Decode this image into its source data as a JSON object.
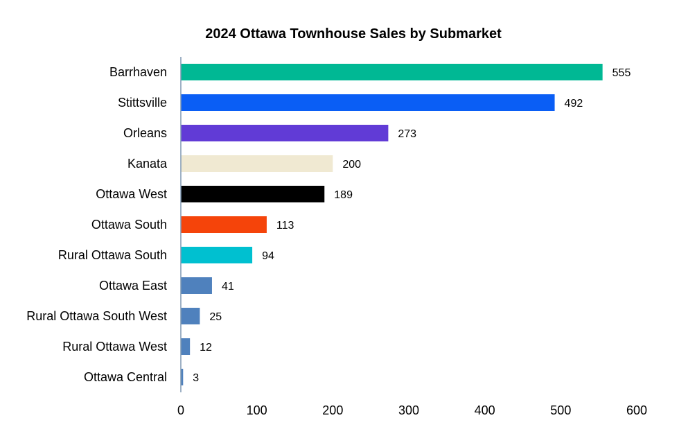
{
  "chart_data": {
    "type": "bar",
    "orientation": "horizontal",
    "title": "2024 Ottawa Townhouse Sales by Submarket",
    "xlabel": "",
    "ylabel": "",
    "xlim": [
      0,
      600
    ],
    "xticks": [
      0,
      100,
      200,
      300,
      400,
      500,
      600
    ],
    "grid": false,
    "legend": "none",
    "categories": [
      "Barrhaven",
      "Stittsville",
      "Orleans",
      "Kanata",
      "Ottawa West",
      "Ottawa South",
      "Rural Ottawa South",
      "Ottawa East",
      "Rural Ottawa South West",
      "Rural Ottawa West",
      "Ottawa Central"
    ],
    "values": [
      555,
      492,
      273,
      200,
      189,
      113,
      94,
      41,
      25,
      12,
      3
    ],
    "colors": [
      "#00b894",
      "#0a5ef5",
      "#613bd6",
      "#f0e9d2",
      "#000000",
      "#f5440a",
      "#00c0d0",
      "#4f81bd",
      "#4f81bd",
      "#4f81bd",
      "#4f81bd"
    ],
    "axis_color": "#7f97b2"
  }
}
